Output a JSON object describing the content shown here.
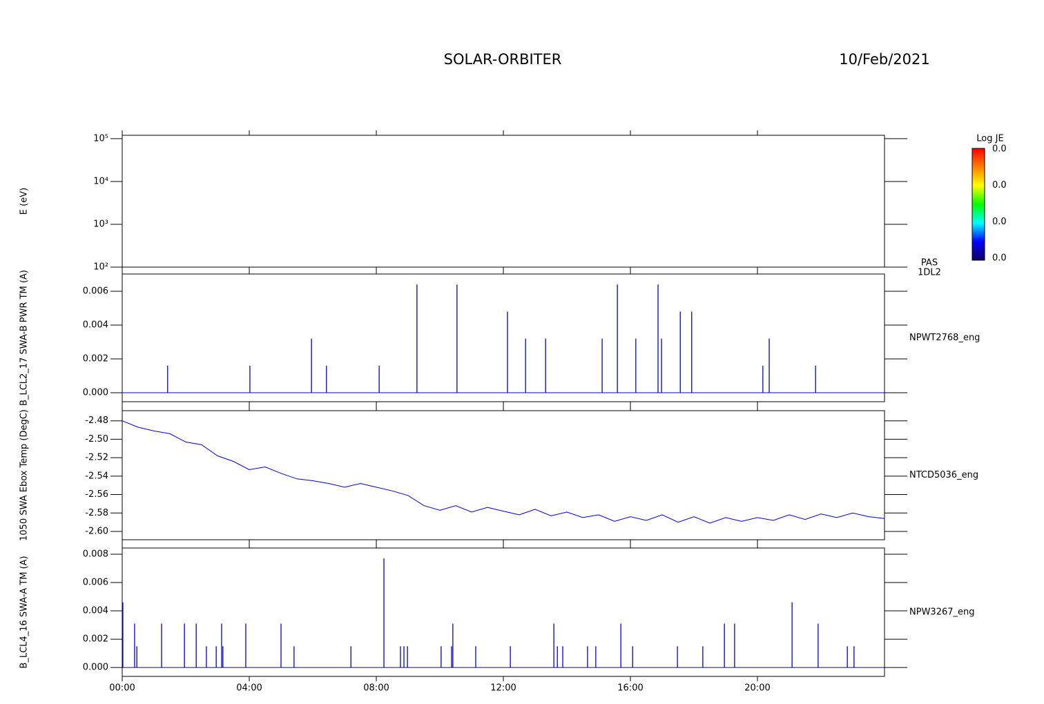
{
  "header": {
    "title": "SOLAR-ORBITER",
    "date": "10/Feb/2021"
  },
  "chart_data": [
    {
      "type": "spectrogram",
      "ylabel": "E (eV)",
      "right_label": [
        "PAS",
        "1DL2"
      ],
      "log_y": true,
      "xlim": [
        0,
        24
      ],
      "xticks": [
        0,
        4,
        8,
        12,
        16,
        20
      ],
      "ylim": [
        100,
        120000
      ],
      "yticks": [
        {
          "value": 100,
          "label": "10²"
        },
        {
          "value": 1000,
          "label": "10³"
        },
        {
          "value": 10000,
          "label": "10⁴"
        },
        {
          "value": 100000,
          "label": "10⁵"
        }
      ],
      "colorbar": {
        "label": "Log JE",
        "tick_labels": [
          "0.0",
          "0.0",
          "0.0",
          "0.0"
        ],
        "colorscale": [
          "#ff0000",
          "#ff8000",
          "#ffff00",
          "#00ff00",
          "#00ffff",
          "#0000ff",
          "#100060"
        ]
      }
    },
    {
      "type": "stem",
      "ylabel": "B_LCL2_17 SWA-B PWR TM (A)",
      "right_label": [
        "NPWT2768_eng"
      ],
      "color": "#0000c8",
      "xlim": [
        0,
        24
      ],
      "xticks": [
        0,
        4,
        8,
        12,
        16,
        20
      ],
      "ylim": [
        -0.00053,
        0.00702
      ],
      "yticks": [
        {
          "value": 0,
          "label": "0.000"
        },
        0.002,
        0.004,
        0.006
      ],
      "x": [
        1.43,
        4.02,
        5.96,
        6.43,
        8.09,
        9.28,
        10.54,
        12.13,
        12.7,
        13.33,
        15.11,
        15.59,
        16.17,
        16.87,
        16.98,
        17.57,
        17.93,
        20.17,
        20.37,
        21.83
      ],
      "values": [
        0.0016,
        0.0016,
        0.0032,
        0.0016,
        0.0016,
        0.0064,
        0.0064,
        0.0048,
        0.0032,
        0.0032,
        0.0032,
        0.0064,
        0.0032,
        0.0064,
        0.0032,
        0.0048,
        0.0048,
        0.0016,
        0.0032,
        0.0016
      ]
    },
    {
      "type": "line",
      "ylabel": "1050 SWA Ebox Temp (DegC)",
      "right_label": [
        "NTCD5036_eng"
      ],
      "color": "#0000c8",
      "xlim": [
        0,
        24
      ],
      "xticks": [
        0,
        4,
        8,
        12,
        16,
        20
      ],
      "ylim": [
        -2.609,
        -2.469
      ],
      "yticks": [
        -2.48,
        {
          "value": -2.5,
          "label": "-2.50"
        },
        -2.52,
        -2.54,
        -2.56,
        -2.58,
        {
          "value": -2.6,
          "label": "-2.60"
        }
      ],
      "x": [
        0,
        0.5,
        1,
        1.5,
        2,
        2.5,
        3,
        3.5,
        4,
        4.5,
        5,
        5.5,
        6,
        6.5,
        7,
        7.5,
        8,
        8.5,
        9,
        9.5,
        10,
        10.5,
        11,
        11.5,
        12,
        12.5,
        13,
        13.5,
        14,
        14.5,
        15,
        15.5,
        16,
        16.5,
        17,
        17.5,
        18,
        18.5,
        19,
        19.5,
        20,
        20.5,
        21,
        21.5,
        22,
        22.5,
        23,
        23.5,
        24
      ],
      "values": [
        -2.48,
        -2.487,
        -2.491,
        -2.494,
        -2.503,
        -2.506,
        -2.518,
        -2.524,
        -2.533,
        -2.53,
        -2.537,
        -2.543,
        -2.545,
        -2.548,
        -2.552,
        -2.548,
        -2.552,
        -2.556,
        -2.561,
        -2.572,
        -2.577,
        -2.572,
        -2.579,
        -2.574,
        -2.578,
        -2.582,
        -2.576,
        -2.583,
        -2.579,
        -2.585,
        -2.582,
        -2.589,
        -2.584,
        -2.588,
        -2.582,
        -2.59,
        -2.584,
        -2.591,
        -2.585,
        -2.589,
        -2.585,
        -2.588,
        -2.582,
        -2.587,
        -2.581,
        -2.585,
        -2.58,
        -2.584,
        -2.586
      ]
    },
    {
      "type": "stem",
      "ylabel": "B_LCL4_16 SWA-A TM (A)",
      "right_label": [
        "NPW3267_eng"
      ],
      "color": "#0000c8",
      "xlim": [
        0,
        24
      ],
      "xticks": [
        {
          "value": 0,
          "label": "00:00"
        },
        {
          "value": 4,
          "label": "04:00"
        },
        {
          "value": 8,
          "label": "08:00"
        },
        {
          "value": 12,
          "label": "12:00"
        },
        {
          "value": 16,
          "label": "16:00"
        },
        {
          "value": 20,
          "label": "20:00"
        }
      ],
      "ylim": [
        -0.00063,
        0.00844
      ],
      "yticks": [
        {
          "value": 0,
          "label": "0.000"
        },
        0.002,
        0.004,
        0.006,
        0.008
      ],
      "x": [
        0.02,
        0.39,
        0.46,
        1.24,
        1.96,
        2.33,
        2.65,
        2.96,
        3.13,
        3.17,
        3.89,
        5.0,
        5.41,
        7.2,
        8.24,
        8.76,
        8.87,
        8.98,
        10.04,
        10.37,
        10.41,
        11.13,
        12.22,
        13.59,
        13.7,
        13.87,
        14.65,
        14.91,
        15.7,
        16.07,
        17.48,
        18.28,
        18.96,
        19.28,
        21.09,
        21.91,
        22.83,
        23.04
      ],
      "values": [
        0.0046,
        0.0031,
        0.0015,
        0.0031,
        0.0031,
        0.0031,
        0.0015,
        0.0015,
        0.0031,
        0.0015,
        0.0031,
        0.0031,
        0.0015,
        0.0015,
        0.0077,
        0.0015,
        0.0015,
        0.0015,
        0.0015,
        0.0015,
        0.0031,
        0.0015,
        0.0015,
        0.0031,
        0.0015,
        0.0015,
        0.0015,
        0.0015,
        0.0031,
        0.0015,
        0.0015,
        0.0015,
        0.0031,
        0.0031,
        0.0046,
        0.0031,
        0.0015,
        0.0015
      ]
    }
  ]
}
